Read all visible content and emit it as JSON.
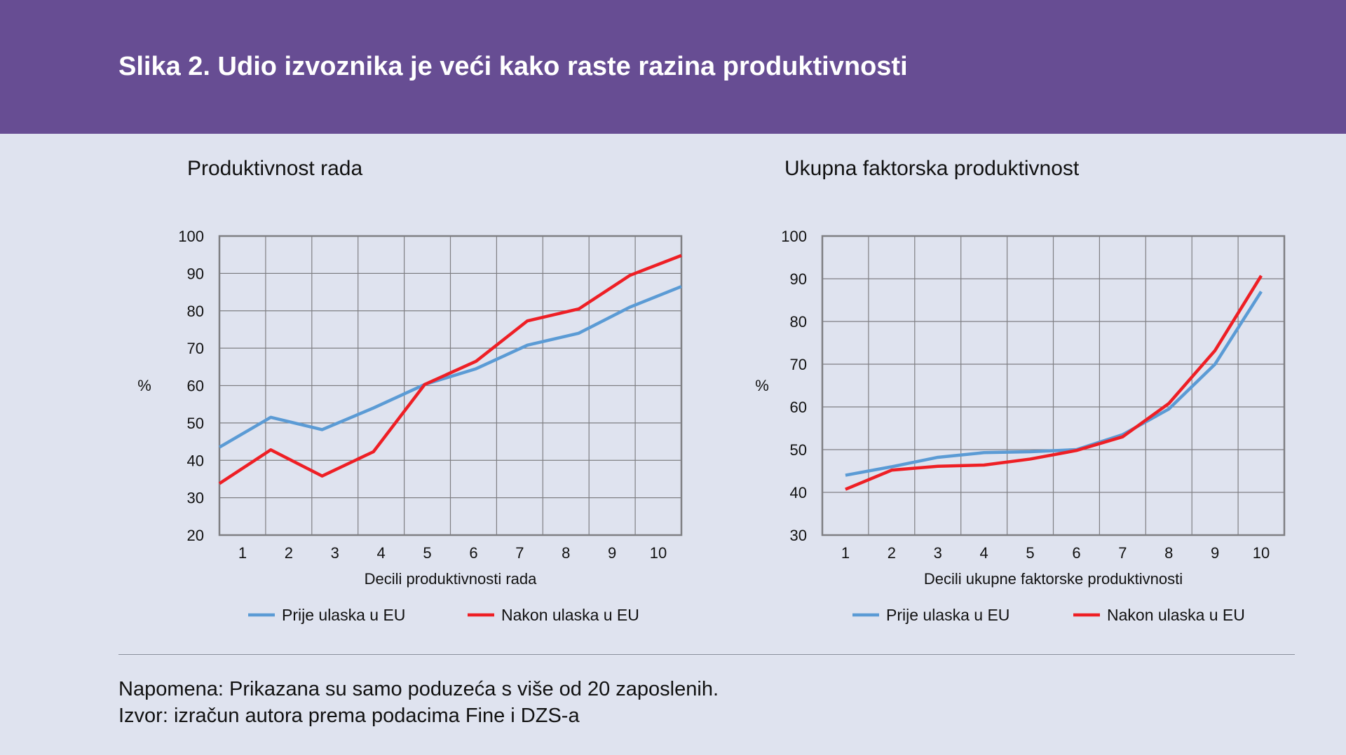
{
  "title": "Slika 2. Udio izvoznika je veći kako raste razina produktivnosti",
  "colors": {
    "header": "#674d93",
    "background": "#dfe3ef",
    "series_before": "#5b9bd5",
    "series_after": "#ee1f25",
    "grid": "#7f7f83"
  },
  "chart_data": [
    {
      "type": "line",
      "title": "Produktivnost rada",
      "xlabel": "Decili produktivnosti rada",
      "ylabel": "%",
      "categories": [
        "1",
        "2",
        "3",
        "4",
        "5",
        "6",
        "7",
        "8",
        "9",
        "10"
      ],
      "yticks": [
        "20",
        "30",
        "40",
        "50",
        "60",
        "70",
        "80",
        "90",
        "100"
      ],
      "ylim": [
        20,
        100
      ],
      "grid": true,
      "legend": "bottom",
      "series": [
        {
          "name": "Prije ulaska u EU",
          "color": "#5b9bd5",
          "values": [
            43.5,
            51.5,
            48.2,
            54.0,
            60.3,
            64.5,
            70.8,
            74.0,
            81.0,
            86.5
          ]
        },
        {
          "name": "Nakon ulaska u EU",
          "color": "#ee1f25",
          "values": [
            33.8,
            42.8,
            35.8,
            42.3,
            60.3,
            66.5,
            77.3,
            80.5,
            89.5,
            94.8
          ]
        }
      ]
    },
    {
      "type": "line",
      "title": "Ukupna faktorska produktivnost",
      "xlabel": "Decili ukupne faktorske produktivnosti",
      "ylabel": "%",
      "categories": [
        "1",
        "2",
        "3",
        "4",
        "5",
        "6",
        "7",
        "8",
        "9",
        "10"
      ],
      "yticks": [
        "30",
        "40",
        "50",
        "60",
        "70",
        "80",
        "90",
        "100"
      ],
      "ylim": [
        30,
        100
      ],
      "grid": true,
      "legend": "bottom",
      "series": [
        {
          "name": "Prije ulaska u EU",
          "color": "#5b9bd5",
          "values": [
            44.0,
            46.0,
            48.2,
            49.3,
            49.5,
            50.0,
            53.5,
            59.5,
            70.0,
            87.0
          ]
        },
        {
          "name": "Nakon ulaska u EU",
          "color": "#ee1f25",
          "values": [
            40.7,
            45.2,
            46.1,
            46.4,
            47.8,
            49.8,
            53.0,
            60.8,
            73.2,
            90.7
          ]
        }
      ]
    }
  ],
  "notes": {
    "line1": "Napomena: Prikazana su samo poduzeća s više od 20 zaposlenih.",
    "line2": "Izvor: izračun autora prema podacima Fine i DZS-a"
  }
}
